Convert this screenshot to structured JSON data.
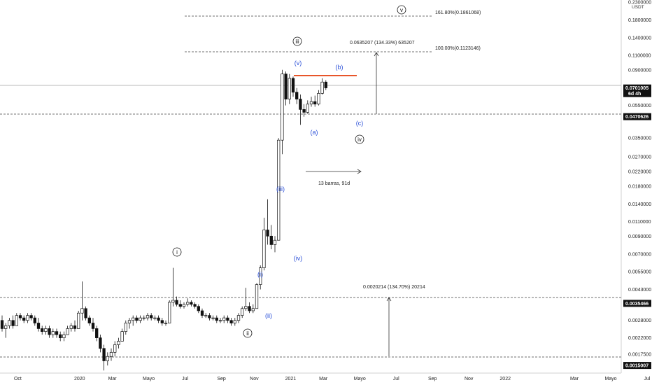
{
  "chart_data": {
    "type": "candlestick",
    "price_unit": "USDT",
    "y_scale": "log",
    "ylim": [
      0.00135,
      0.23
    ],
    "y_ticks": [
      {
        "v": 0.23,
        "label": "0.2300000"
      },
      {
        "v": 0.18,
        "label": "0.1800000"
      },
      {
        "v": 0.14,
        "label": "0.1400000"
      },
      {
        "v": 0.11,
        "label": "0.1100000"
      },
      {
        "v": 0.09,
        "label": "0.0900000"
      },
      {
        "v": 0.055,
        "label": "0.0550000"
      },
      {
        "v": 0.035,
        "label": "0.0350000"
      },
      {
        "v": 0.027,
        "label": "0.0270000"
      },
      {
        "v": 0.022,
        "label": "0.0220000"
      },
      {
        "v": 0.018,
        "label": "0.0180000"
      },
      {
        "v": 0.014,
        "label": "0.0140000"
      },
      {
        "v": 0.011,
        "label": "0.0110000"
      },
      {
        "v": 0.009,
        "label": "0.0090000"
      },
      {
        "v": 0.007,
        "label": "0.0070000"
      },
      {
        "v": 0.0055,
        "label": "0.0055000"
      },
      {
        "v": 0.0043,
        "label": "0.0043000"
      },
      {
        "v": 0.0028,
        "label": "0.0028000"
      },
      {
        "v": 0.0022,
        "label": "0.0022000"
      },
      {
        "v": 0.00175,
        "label": "0.0017500"
      }
    ],
    "price_tags": [
      {
        "v": 0.07,
        "label": "0.0701005",
        "sub": "6d 4h",
        "kind": "current"
      },
      {
        "v": 0.0470626,
        "label": "0.0470626",
        "kind": "level"
      },
      {
        "v": 0.0035466,
        "label": "0.0035466",
        "kind": "level"
      },
      {
        "v": 0.0015007,
        "label": "0.0015007",
        "kind": "level"
      }
    ],
    "x_ticks": [
      {
        "i": 2,
        "label": "Oct"
      },
      {
        "i": 19,
        "label": "2020"
      },
      {
        "i": 28,
        "label": "Mar"
      },
      {
        "i": 38,
        "label": "Mayo"
      },
      {
        "i": 48,
        "label": "Jul"
      },
      {
        "i": 58,
        "label": "Sep"
      },
      {
        "i": 67,
        "label": "Nov"
      },
      {
        "i": 77,
        "label": "2021"
      },
      {
        "i": 86,
        "label": "Mar"
      },
      {
        "i": 96,
        "label": "Mayo"
      },
      {
        "i": 106,
        "label": "Jul"
      },
      {
        "i": 116,
        "label": "Sep"
      },
      {
        "i": 126,
        "label": "Nov"
      },
      {
        "i": 136,
        "label": "2022"
      },
      {
        "i": 155,
        "label": "Mar"
      },
      {
        "i": 165,
        "label": "Mayo"
      },
      {
        "i": 175,
        "label": "Jul"
      }
    ],
    "candles": [
      [
        0.0028,
        0.003,
        0.0024,
        0.0025
      ],
      [
        0.0025,
        0.0027,
        0.0022,
        0.0026
      ],
      [
        0.0026,
        0.0029,
        0.0025,
        0.0028
      ],
      [
        0.0028,
        0.003,
        0.0025,
        0.0026
      ],
      [
        0.0026,
        0.0031,
        0.0026,
        0.003
      ],
      [
        0.003,
        0.0031,
        0.0028,
        0.0029
      ],
      [
        0.0029,
        0.003,
        0.0027,
        0.0028
      ],
      [
        0.0028,
        0.0031,
        0.0027,
        0.003
      ],
      [
        0.003,
        0.0031,
        0.0028,
        0.0029
      ],
      [
        0.0029,
        0.003,
        0.0026,
        0.0027
      ],
      [
        0.0027,
        0.0029,
        0.0024,
        0.0025
      ],
      [
        0.0025,
        0.0026,
        0.0023,
        0.0024
      ],
      [
        0.0024,
        0.0026,
        0.0023,
        0.0025
      ],
      [
        0.0025,
        0.0026,
        0.0022,
        0.0023
      ],
      [
        0.0023,
        0.0025,
        0.0022,
        0.0024
      ],
      [
        0.0024,
        0.0025,
        0.0022,
        0.0023
      ],
      [
        0.0023,
        0.0024,
        0.0021,
        0.0022
      ],
      [
        0.0022,
        0.0024,
        0.0021,
        0.0023
      ],
      [
        0.0023,
        0.0026,
        0.0023,
        0.0025
      ],
      [
        0.0025,
        0.0027,
        0.0024,
        0.0026
      ],
      [
        0.0026,
        0.0028,
        0.0024,
        0.0025
      ],
      [
        0.0025,
        0.0032,
        0.0025,
        0.0031
      ],
      [
        0.0031,
        0.0048,
        0.0028,
        0.0033
      ],
      [
        0.0033,
        0.0034,
        0.0028,
        0.0029
      ],
      [
        0.0029,
        0.003,
        0.0026,
        0.0027
      ],
      [
        0.0027,
        0.0029,
        0.0024,
        0.0025
      ],
      [
        0.0025,
        0.0026,
        0.0021,
        0.0022
      ],
      [
        0.0022,
        0.0023,
        0.0018,
        0.0019
      ],
      [
        0.0019,
        0.002,
        0.0014,
        0.0016
      ],
      [
        0.0016,
        0.0018,
        0.0015,
        0.0017
      ],
      [
        0.0017,
        0.0019,
        0.0016,
        0.0018
      ],
      [
        0.0018,
        0.0021,
        0.0017,
        0.002
      ],
      [
        0.002,
        0.0022,
        0.0019,
        0.0021
      ],
      [
        0.0021,
        0.0025,
        0.0021,
        0.0024
      ],
      [
        0.0024,
        0.0028,
        0.0023,
        0.0027
      ],
      [
        0.0027,
        0.0029,
        0.0025,
        0.0028
      ],
      [
        0.0028,
        0.003,
        0.0026,
        0.0029
      ],
      [
        0.0029,
        0.003,
        0.0027,
        0.0028
      ],
      [
        0.0028,
        0.003,
        0.0027,
        0.0029
      ],
      [
        0.0029,
        0.003,
        0.0028,
        0.0029
      ],
      [
        0.0029,
        0.0031,
        0.0028,
        0.003
      ],
      [
        0.003,
        0.0031,
        0.0028,
        0.0029
      ],
      [
        0.0029,
        0.003,
        0.0028,
        0.0029
      ],
      [
        0.0029,
        0.003,
        0.0027,
        0.0028
      ],
      [
        0.0028,
        0.0029,
        0.0026,
        0.0027
      ],
      [
        0.0027,
        0.0028,
        0.0026,
        0.0027
      ],
      [
        0.0027,
        0.0037,
        0.0027,
        0.0036
      ],
      [
        0.0036,
        0.0058,
        0.0034,
        0.0037
      ],
      [
        0.0037,
        0.0039,
        0.0034,
        0.0035
      ],
      [
        0.0035,
        0.0037,
        0.0033,
        0.0034
      ],
      [
        0.0034,
        0.0036,
        0.0033,
        0.0035
      ],
      [
        0.0035,
        0.0038,
        0.0034,
        0.0036
      ],
      [
        0.0036,
        0.0037,
        0.0034,
        0.0035
      ],
      [
        0.0035,
        0.0036,
        0.0033,
        0.0034
      ],
      [
        0.0034,
        0.0035,
        0.0031,
        0.0032
      ],
      [
        0.0032,
        0.0033,
        0.0029,
        0.003
      ],
      [
        0.003,
        0.0031,
        0.0029,
        0.003
      ],
      [
        0.003,
        0.0031,
        0.0028,
        0.0029
      ],
      [
        0.0029,
        0.003,
        0.0028,
        0.0029
      ],
      [
        0.0029,
        0.003,
        0.0027,
        0.0028
      ],
      [
        0.0028,
        0.0029,
        0.0027,
        0.0028
      ],
      [
        0.0028,
        0.003,
        0.0027,
        0.0029
      ],
      [
        0.0029,
        0.003,
        0.0027,
        0.0028
      ],
      [
        0.0028,
        0.0029,
        0.0026,
        0.0027
      ],
      [
        0.0027,
        0.0029,
        0.0026,
        0.0028
      ],
      [
        0.0028,
        0.0031,
        0.0027,
        0.003
      ],
      [
        0.003,
        0.0034,
        0.0029,
        0.0033
      ],
      [
        0.0033,
        0.0044,
        0.0032,
        0.0034
      ],
      [
        0.0034,
        0.0036,
        0.0031,
        0.0032
      ],
      [
        0.0032,
        0.0035,
        0.0031,
        0.0033
      ],
      [
        0.0033,
        0.0047,
        0.0033,
        0.0046
      ],
      [
        0.0046,
        0.006,
        0.0043,
        0.0058
      ],
      [
        0.0058,
        0.0116,
        0.0056,
        0.0098
      ],
      [
        0.0098,
        0.015,
        0.008,
        0.009
      ],
      [
        0.009,
        0.0105,
        0.0075,
        0.008
      ],
      [
        0.008,
        0.009,
        0.0072,
        0.0085
      ],
      [
        0.0085,
        0.035,
        0.0085,
        0.034
      ],
      [
        0.034,
        0.09,
        0.028,
        0.085
      ],
      [
        0.085,
        0.088,
        0.055,
        0.06
      ],
      [
        0.06,
        0.085,
        0.056,
        0.08
      ],
      [
        0.08,
        0.082,
        0.062,
        0.066
      ],
      [
        0.066,
        0.07,
        0.056,
        0.06
      ],
      [
        0.06,
        0.064,
        0.042,
        0.052
      ],
      [
        0.052,
        0.056,
        0.047,
        0.05
      ],
      [
        0.05,
        0.059,
        0.049,
        0.056
      ],
      [
        0.056,
        0.062,
        0.054,
        0.058
      ],
      [
        0.058,
        0.063,
        0.054,
        0.056
      ],
      [
        0.056,
        0.068,
        0.055,
        0.065
      ],
      [
        0.065,
        0.08,
        0.064,
        0.076
      ],
      [
        0.076,
        0.078,
        0.068,
        0.0701
      ]
    ],
    "annotations": {
      "fib_161": "161.80%(0.1861068)",
      "fib_100": "100.00%(0.1123146)",
      "measure_upper": "0.0635207 (134.33%) 635207",
      "measure_lower": "0.0020214 (134.70%) 20214",
      "bars_range": "13 barras, 91d"
    },
    "wave_labels": {
      "circled": [
        "i",
        "ii",
        "iii",
        "iv",
        "v"
      ],
      "sub": [
        "(i)",
        "(ii)",
        "(iii)",
        "(iv)",
        "(v)"
      ],
      "abc": [
        "(a)",
        "(b)",
        "(c)"
      ]
    },
    "colors": {
      "resistance": "#e8552a",
      "wave_blue": "#2a4fd8",
      "tag_bg": "#111111"
    }
  }
}
